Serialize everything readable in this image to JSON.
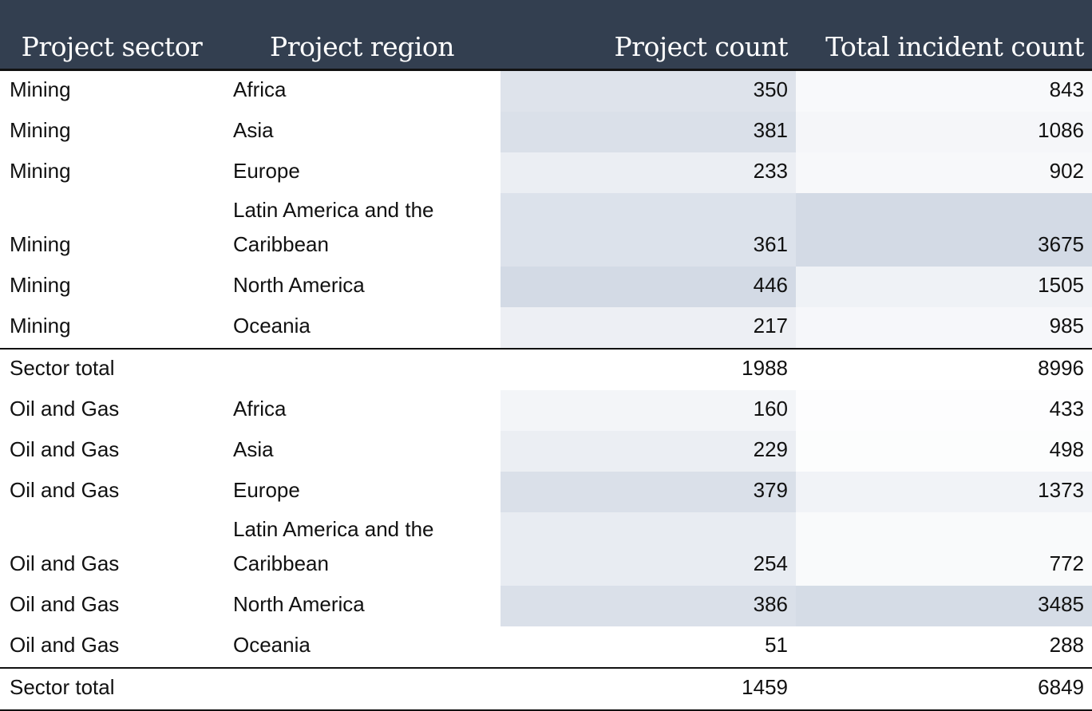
{
  "chart_data": {
    "type": "table",
    "columns": [
      "Project sector",
      "Project region",
      "Project count",
      "Total incident count"
    ],
    "rows": [
      {
        "sector": "Mining",
        "region": "Africa",
        "project_count": 350,
        "incident_count": 843
      },
      {
        "sector": "Mining",
        "region": "Asia",
        "project_count": 381,
        "incident_count": 1086
      },
      {
        "sector": "Mining",
        "region": "Europe",
        "project_count": 233,
        "incident_count": 902
      },
      {
        "sector": "Mining",
        "region": "Latin America and the Caribbean",
        "project_count": 361,
        "incident_count": 3675
      },
      {
        "sector": "Mining",
        "region": "North America",
        "project_count": 446,
        "incident_count": 1505
      },
      {
        "sector": "Mining",
        "region": "Oceania",
        "project_count": 217,
        "incident_count": 985
      },
      {
        "sector": "Sector total",
        "region": "",
        "project_count": 1988,
        "incident_count": 8996,
        "total": true
      },
      {
        "sector": "Oil and Gas",
        "region": "Africa",
        "project_count": 160,
        "incident_count": 433
      },
      {
        "sector": "Oil and Gas",
        "region": "Asia",
        "project_count": 229,
        "incident_count": 498
      },
      {
        "sector": "Oil and Gas",
        "region": "Europe",
        "project_count": 379,
        "incident_count": 1373
      },
      {
        "sector": "Oil and Gas",
        "region": "Latin America and the Caribbean",
        "project_count": 254,
        "incident_count": 772
      },
      {
        "sector": "Oil and Gas",
        "region": "North America",
        "project_count": 386,
        "incident_count": 3485
      },
      {
        "sector": "Oil and Gas",
        "region": "Oceania",
        "project_count": 51,
        "incident_count": 288
      },
      {
        "sector": "Sector total",
        "region": "",
        "project_count": 1459,
        "incident_count": 6849,
        "total": true
      }
    ],
    "colors": {
      "header_bg": "#333f50",
      "header_text": "#ffffff",
      "heat_low": "#ffffff",
      "heat_high": "#d3dae5"
    }
  }
}
